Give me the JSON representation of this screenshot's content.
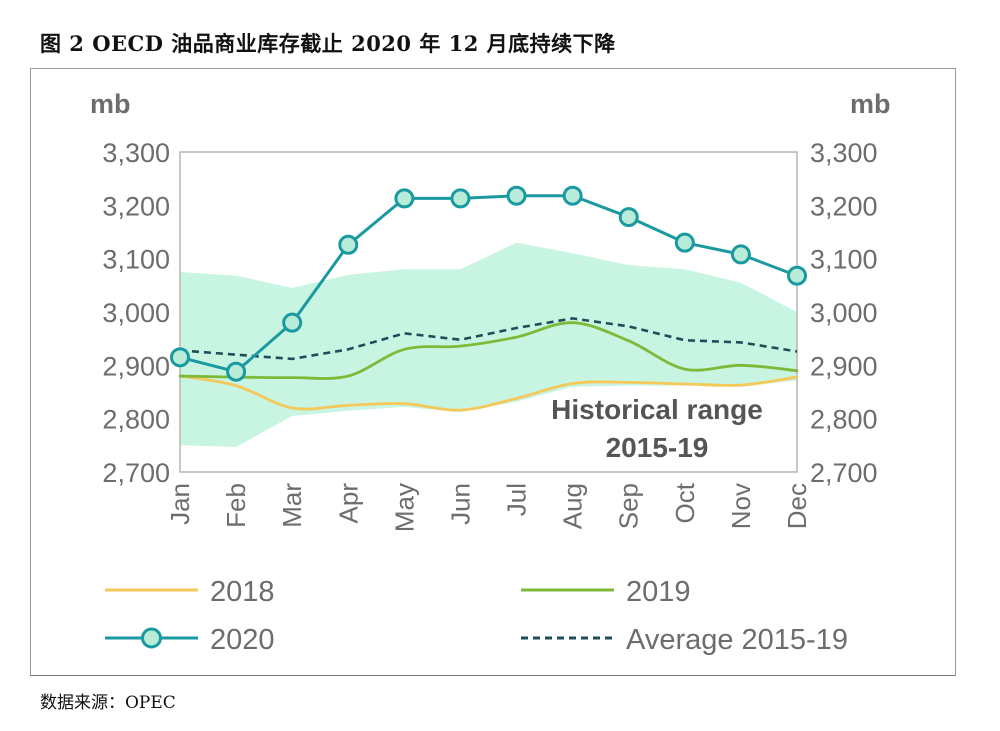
{
  "figure": {
    "title": "图 2 OECD 油品商业库存截止 2020 年 12 月底持续下降",
    "source": "数据来源：OPEC"
  },
  "colors": {
    "s2018": "#f5c85a",
    "s2019": "#7dba3a",
    "s2020": "#1a9aa0",
    "marker_fill": "#b8ecd8",
    "average": "#1f4e5a",
    "range_fill": "#c8f4e2",
    "axis_text": "#6d6d6d",
    "annotation_text": "#555555"
  },
  "chart_data": {
    "type": "line",
    "y_unit_left": "mb",
    "y_unit_right": "mb",
    "ylim": [
      2700,
      3300
    ],
    "yticks": [
      "2,700",
      "2,800",
      "2,900",
      "3,000",
      "3,100",
      "3,200",
      "3,300"
    ],
    "ytick_values": [
      2700,
      2800,
      2900,
      3000,
      3100,
      3200,
      3300
    ],
    "categories": [
      "Jan",
      "Feb",
      "Mar",
      "Apr",
      "May",
      "Jun",
      "Jul",
      "Aug",
      "Sep",
      "Oct",
      "Nov",
      "Dec"
    ],
    "series": [
      {
        "name": "2018",
        "style": "line",
        "color_key": "s2018",
        "values": [
          2880,
          2862,
          2820,
          2825,
          2828,
          2816,
          2838,
          2866,
          2868,
          2865,
          2863,
          2878
        ]
      },
      {
        "name": "2019",
        "style": "line",
        "color_key": "s2019",
        "values": [
          2880,
          2878,
          2877,
          2880,
          2930,
          2936,
          2953,
          2980,
          2946,
          2893,
          2900,
          2890
        ]
      },
      {
        "name": "2020",
        "style": "line-marker",
        "color_key": "s2020",
        "values": [
          2915,
          2888,
          2980,
          3126,
          3213,
          3213,
          3218,
          3218,
          3178,
          3130,
          3108,
          3068
        ]
      },
      {
        "name": "Average 2015-19",
        "style": "dashed",
        "color_key": "average",
        "values": [
          2928,
          2920,
          2912,
          2930,
          2960,
          2948,
          2970,
          2988,
          2973,
          2947,
          2943,
          2926
        ]
      }
    ],
    "range": {
      "upper": [
        3075,
        3068,
        3045,
        3070,
        3080,
        3080,
        3130,
        3110,
        3088,
        3080,
        3055,
        3000
      ],
      "lower": [
        2750,
        2747,
        2805,
        2815,
        2822,
        2812,
        2832,
        2860,
        2862,
        2862,
        2860,
        2872
      ]
    },
    "annotation": [
      "Historical range",
      "2015-19"
    ],
    "legend_position": "bottom"
  }
}
